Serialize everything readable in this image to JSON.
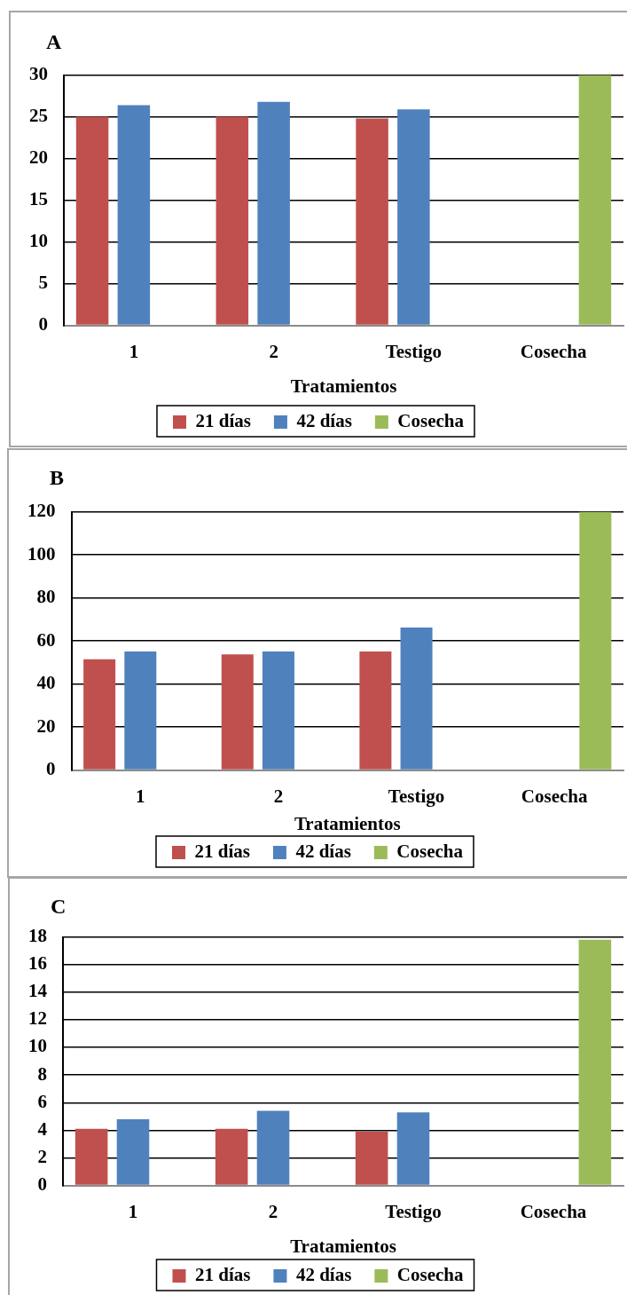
{
  "chart_data": [
    {
      "type": "bar",
      "title": "A",
      "xlabel": "Tratamientos",
      "categories": [
        "1",
        "2",
        "Testigo",
        "Cosecha"
      ],
      "series": [
        {
          "name": "21 días",
          "color": "#c0504d",
          "values": [
            25.0,
            25.0,
            24.8,
            null
          ]
        },
        {
          "name": "42 días",
          "color": "#4f81bd",
          "values": [
            26.4,
            26.8,
            25.9,
            null
          ]
        },
        {
          "name": "Cosecha",
          "color": "#9bbb59",
          "values": [
            null,
            null,
            null,
            30
          ]
        }
      ],
      "ylim": [
        0,
        30
      ],
      "yticks": [
        0,
        5,
        10,
        15,
        20,
        25,
        30
      ],
      "grid": "y",
      "legend": "bottom"
    },
    {
      "type": "bar",
      "title": "B",
      "xlabel": "Tratamientos",
      "categories": [
        "1",
        "2",
        "Testigo",
        "Cosecha"
      ],
      "series": [
        {
          "name": "21 días",
          "color": "#c0504d",
          "values": [
            51.5,
            53.8,
            55.1,
            null
          ]
        },
        {
          "name": "42 días",
          "color": "#4f81bd",
          "values": [
            55.1,
            55.1,
            66.2,
            null
          ]
        },
        {
          "name": "Cosecha",
          "color": "#9bbb59",
          "values": [
            null,
            null,
            null,
            120
          ]
        }
      ],
      "ylim": [
        0,
        120
      ],
      "yticks": [
        0,
        20,
        40,
        60,
        80,
        100,
        120
      ],
      "grid": "y",
      "legend": "bottom"
    },
    {
      "type": "bar",
      "title": "C",
      "xlabel": "Tratamientos",
      "categories": [
        "1",
        "2",
        "Testigo",
        "Cosecha"
      ],
      "series": [
        {
          "name": "21 días",
          "color": "#c0504d",
          "values": [
            4.1,
            4.1,
            3.9,
            null
          ]
        },
        {
          "name": "42 días",
          "color": "#4f81bd",
          "values": [
            4.8,
            5.4,
            5.3,
            null
          ]
        },
        {
          "name": "Cosecha",
          "color": "#9bbb59",
          "values": [
            null,
            null,
            null,
            17.8
          ]
        }
      ],
      "ylim": [
        0,
        18
      ],
      "yticks": [
        0,
        2,
        4,
        6,
        8,
        10,
        12,
        14,
        16,
        18
      ],
      "grid": "y",
      "legend": "bottom"
    }
  ]
}
